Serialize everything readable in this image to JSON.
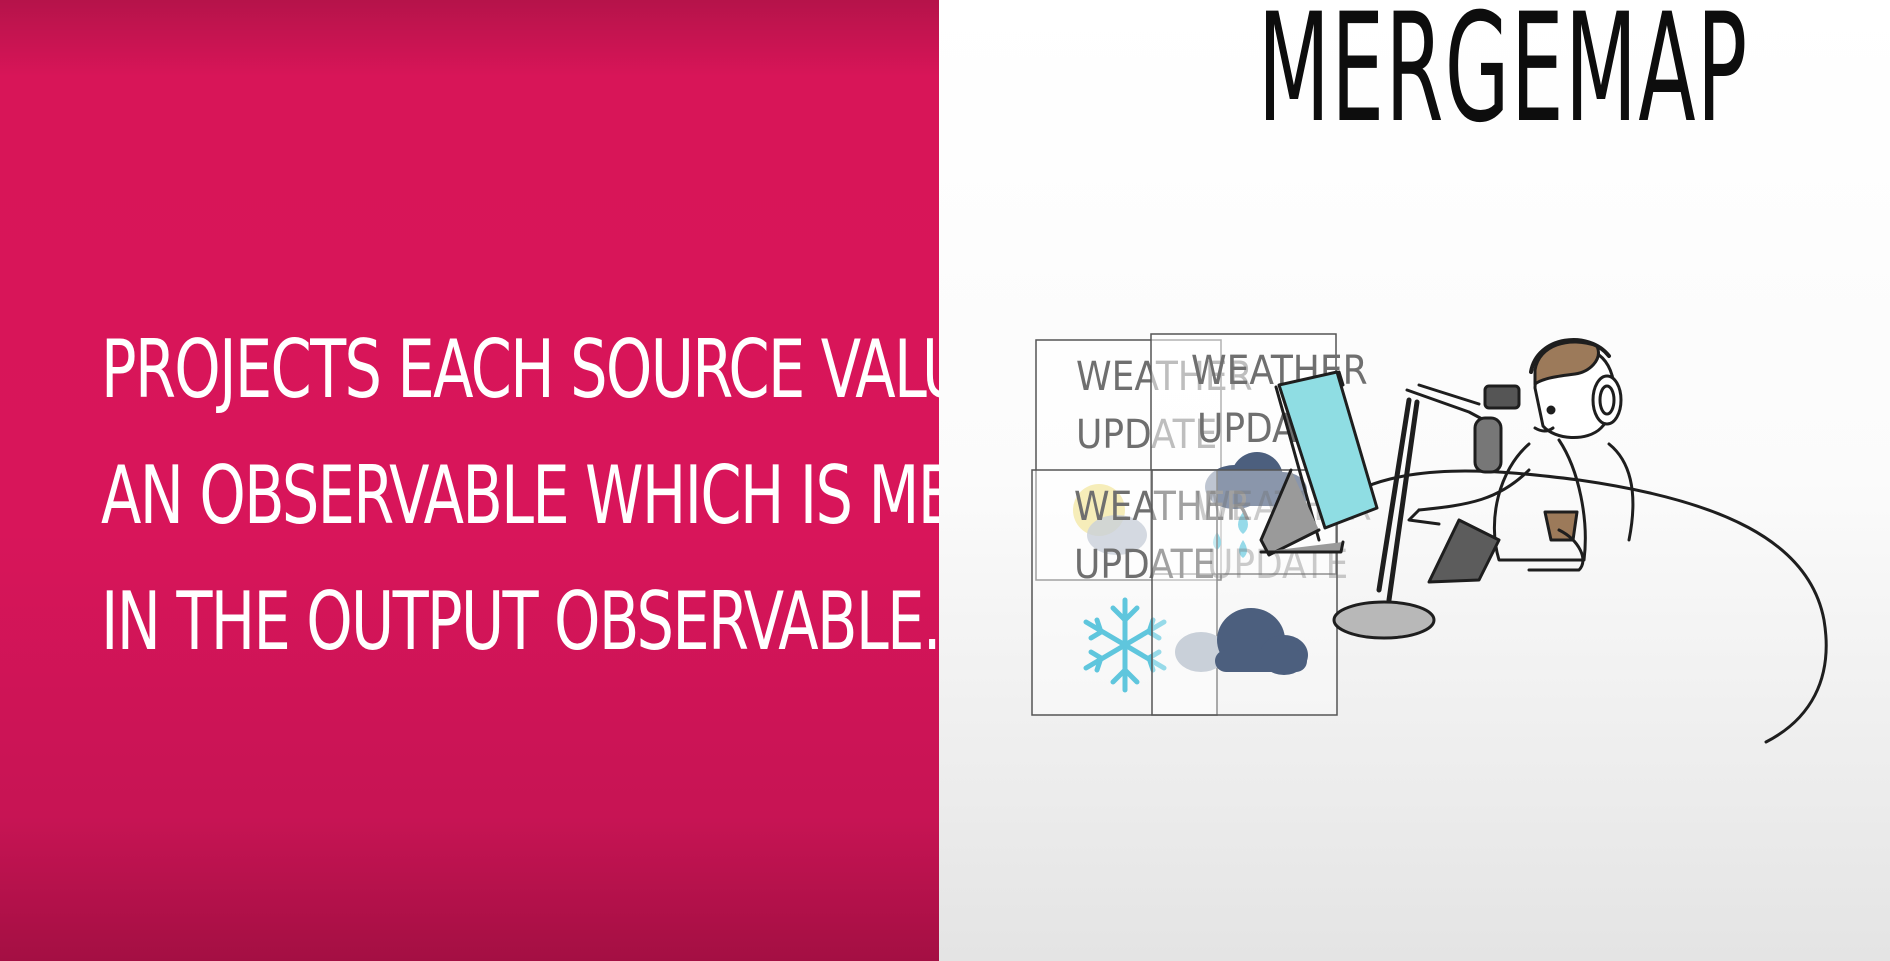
{
  "caption": {
    "line1": "PROJECTS EACH  SOURCE VALUE TO",
    "line2": "AN OBSERVABLE WHICH IS MERGED",
    "line3": "IN THE OUTPUT OBSERVABLE."
  },
  "title": "MERGEMAP",
  "cards": {
    "label_line1": "WEATHER",
    "label_line2": "UPDATE"
  },
  "colors": {
    "left_panel": "#d8155a",
    "snowflake": "#5fc6dd",
    "rain": "#5fc6dd",
    "cloud_dark": "#4c5f7e",
    "cloud_light": "#c9d0d9",
    "screen": "#8fdde3",
    "sun": "#f4e9a8"
  },
  "icons": [
    "snowflake-icon",
    "cloud-icon",
    "rain-cloud-icon",
    "sun-cloud-icon",
    "podcaster-illustration"
  ]
}
